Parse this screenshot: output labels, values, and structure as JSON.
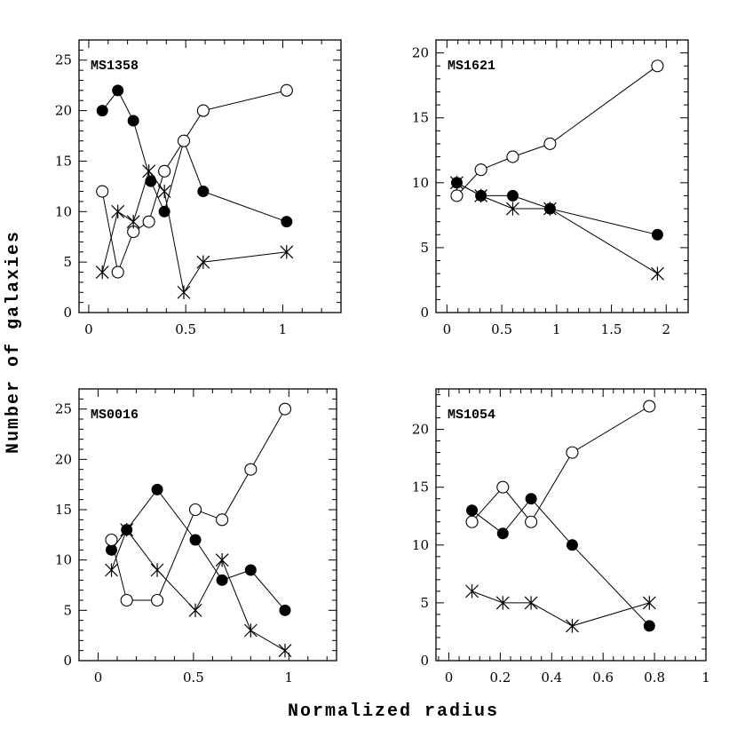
{
  "figure": {
    "ylabel": "Number of galaxies",
    "xlabel": "Normalized radius"
  },
  "chart_data": [
    {
      "type": "line",
      "title": "MS1358",
      "xlim": [
        -0.05,
        1.3
      ],
      "ylim": [
        0,
        27
      ],
      "xticks": [
        0,
        0.5,
        1
      ],
      "xtick_labels": [
        "0",
        "0.5",
        "1"
      ],
      "yticks": [
        0,
        5,
        10,
        15,
        20,
        25
      ],
      "ytick_labels": [
        "0",
        "5",
        "10",
        "15",
        "20",
        "25"
      ],
      "series": [
        {
          "name": "filled",
          "marker": "filled-circle",
          "x": [
            0.07,
            0.15,
            0.23,
            0.32,
            0.39,
            0.49,
            0.59,
            1.02
          ],
          "y": [
            20,
            22,
            19,
            13,
            10,
            17,
            12,
            9
          ]
        },
        {
          "name": "open",
          "marker": "open-circle",
          "x": [
            0.07,
            0.15,
            0.23,
            0.31,
            0.39,
            0.49,
            0.59,
            1.02
          ],
          "y": [
            12,
            4,
            8,
            9,
            14,
            17,
            20,
            22
          ]
        },
        {
          "name": "star",
          "marker": "asterisk",
          "x": [
            0.07,
            0.15,
            0.23,
            0.31,
            0.39,
            0.49,
            0.59,
            1.02
          ],
          "y": [
            4,
            10,
            9,
            14,
            12,
            2,
            5,
            6
          ]
        }
      ]
    },
    {
      "type": "line",
      "title": "MS1621",
      "xlim": [
        -0.1,
        2.2
      ],
      "ylim": [
        0,
        21
      ],
      "xticks": [
        0,
        0.5,
        1,
        1.5,
        2
      ],
      "xtick_labels": [
        "0",
        "0.5",
        "1",
        "1.5",
        "2"
      ],
      "yticks": [
        0,
        5,
        10,
        15,
        20
      ],
      "ytick_labels": [
        "0",
        "5",
        "10",
        "15",
        "20"
      ],
      "series": [
        {
          "name": "filled",
          "marker": "filled-circle",
          "x": [
            0.09,
            0.31,
            0.6,
            0.94,
            1.92
          ],
          "y": [
            10,
            9,
            9,
            8,
            6
          ]
        },
        {
          "name": "open",
          "marker": "open-circle",
          "x": [
            0.09,
            0.31,
            0.6,
            0.94,
            1.92
          ],
          "y": [
            9,
            11,
            12,
            13,
            19
          ]
        },
        {
          "name": "star",
          "marker": "asterisk",
          "x": [
            0.09,
            0.31,
            0.6,
            0.94,
            1.92
          ],
          "y": [
            10,
            9,
            8,
            8,
            3
          ]
        }
      ]
    },
    {
      "type": "line",
      "title": "MS0016",
      "xlim": [
        -0.1,
        1.25
      ],
      "ylim": [
        0,
        27
      ],
      "xticks": [
        0,
        0.5,
        1
      ],
      "xtick_labels": [
        "0",
        "0.5",
        "1"
      ],
      "yticks": [
        0,
        5,
        10,
        15,
        20,
        25
      ],
      "ytick_labels": [
        "0",
        "5",
        "10",
        "15",
        "20",
        "25"
      ],
      "series": [
        {
          "name": "filled",
          "marker": "filled-circle",
          "x": [
            0.07,
            0.15,
            0.31,
            0.51,
            0.65,
            0.8,
            0.98
          ],
          "y": [
            11,
            13,
            17,
            12,
            8,
            9,
            5
          ]
        },
        {
          "name": "open",
          "marker": "open-circle",
          "x": [
            0.07,
            0.15,
            0.31,
            0.51,
            0.65,
            0.8,
            0.98
          ],
          "y": [
            12,
            6,
            6,
            15,
            14,
            19,
            25
          ]
        },
        {
          "name": "star",
          "marker": "asterisk",
          "x": [
            0.07,
            0.15,
            0.31,
            0.51,
            0.65,
            0.8,
            0.98
          ],
          "y": [
            9,
            13,
            9,
            5,
            10,
            3,
            1
          ]
        }
      ]
    },
    {
      "type": "line",
      "title": "MS1054",
      "xlim": [
        -0.05,
        1.0
      ],
      "ylim": [
        0,
        23.5
      ],
      "xticks": [
        0,
        0.2,
        0.4,
        0.6,
        0.8,
        1
      ],
      "xtick_labels": [
        "0",
        "0.2",
        "0.4",
        "0.6",
        "0.8",
        "1"
      ],
      "yticks": [
        0,
        5,
        10,
        15,
        20
      ],
      "ytick_labels": [
        "0",
        "5",
        "10",
        "15",
        "20"
      ],
      "series": [
        {
          "name": "filled",
          "marker": "filled-circle",
          "x": [
            0.09,
            0.21,
            0.32,
            0.48,
            0.78
          ],
          "y": [
            13,
            11,
            14,
            10,
            3
          ]
        },
        {
          "name": "open",
          "marker": "open-circle",
          "x": [
            0.09,
            0.21,
            0.32,
            0.48,
            0.78
          ],
          "y": [
            12,
            15,
            12,
            18,
            22
          ]
        },
        {
          "name": "star",
          "marker": "asterisk",
          "x": [
            0.09,
            0.21,
            0.32,
            0.48,
            0.78
          ],
          "y": [
            6,
            5,
            5,
            3,
            5
          ]
        }
      ]
    }
  ]
}
